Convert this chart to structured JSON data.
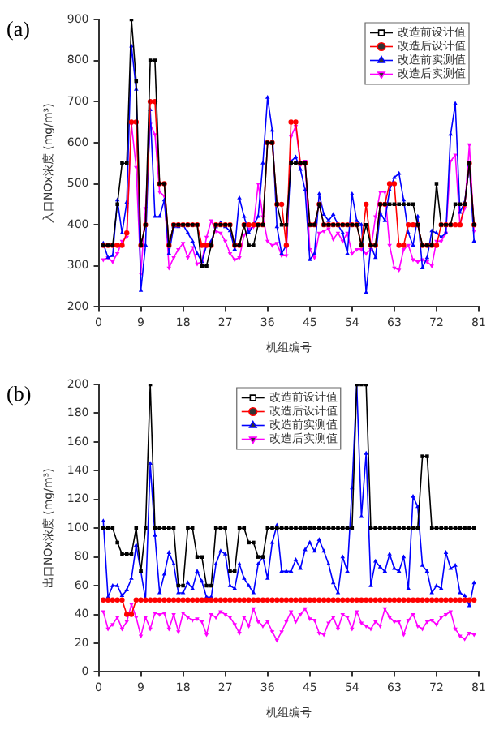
{
  "chart_data": [
    {
      "type": "line",
      "title": "(a)",
      "xlabel": "机组编号",
      "ylabel": "入口NOx浓度 (mg/m³)",
      "xlim": [
        0,
        81
      ],
      "xticks": [
        0,
        9,
        18,
        27,
        36,
        45,
        54,
        63,
        72,
        81
      ],
      "ylim": [
        200,
        900
      ],
      "yticks": [
        200,
        300,
        400,
        500,
        600,
        700,
        800,
        900
      ],
      "legend": "top right",
      "grid": false,
      "x": [
        1,
        2,
        3,
        4,
        5,
        6,
        7,
        8,
        9,
        10,
        11,
        12,
        13,
        14,
        15,
        16,
        17,
        18,
        19,
        20,
        21,
        22,
        23,
        24,
        25,
        26,
        27,
        28,
        29,
        30,
        31,
        32,
        33,
        34,
        35,
        36,
        37,
        38,
        39,
        40,
        41,
        42,
        43,
        44,
        45,
        46,
        47,
        48,
        49,
        50,
        51,
        52,
        53,
        54,
        55,
        56,
        57,
        58,
        59,
        60,
        61,
        62,
        63,
        64,
        65,
        66,
        67,
        68,
        69,
        70,
        71,
        72,
        73,
        74,
        75,
        76,
        77,
        78,
        79,
        80
      ],
      "series": [
        {
          "name": "改造前设计值",
          "color": "#000000",
          "marker": "square",
          "values": [
            350,
            350,
            350,
            450,
            550,
            550,
            900,
            750,
            350,
            400,
            800,
            800,
            500,
            500,
            350,
            400,
            400,
            400,
            400,
            400,
            400,
            300,
            300,
            350,
            400,
            400,
            400,
            400,
            350,
            350,
            400,
            350,
            350,
            400,
            400,
            600,
            600,
            450,
            400,
            400,
            550,
            550,
            550,
            550,
            400,
            400,
            450,
            400,
            400,
            400,
            400,
            400,
            400,
            400,
            400,
            350,
            400,
            350,
            350,
            450,
            450,
            450,
            450,
            450,
            450,
            450,
            450,
            400,
            350,
            350,
            350,
            500,
            400,
            400,
            400,
            450,
            450,
            450,
            550,
            400
          ]
        },
        {
          "name": "改造后设计值",
          "color": "#ff0000",
          "marker": "circle",
          "values": [
            350,
            350,
            350,
            350,
            350,
            380,
            650,
            650,
            350,
            400,
            700,
            700,
            500,
            500,
            350,
            400,
            400,
            400,
            400,
            400,
            400,
            350,
            350,
            350,
            400,
            400,
            400,
            400,
            350,
            350,
            400,
            400,
            400,
            400,
            400,
            600,
            600,
            450,
            450,
            350,
            650,
            650,
            550,
            550,
            400,
            400,
            450,
            400,
            400,
            400,
            400,
            400,
            400,
            400,
            400,
            350,
            450,
            350,
            350,
            450,
            450,
            500,
            500,
            350,
            350,
            400,
            400,
            400,
            350,
            350,
            350,
            350,
            400,
            400,
            400,
            400,
            400,
            450,
            550,
            400
          ]
        },
        {
          "name": "改造前实测值",
          "color": "#0000ff",
          "marker": "triangle",
          "values": [
            355,
            320,
            325,
            460,
            380,
            455,
            835,
            730,
            240,
            350,
            680,
            420,
            420,
            460,
            330,
            395,
            395,
            400,
            380,
            360,
            330,
            310,
            350,
            360,
            395,
            405,
            395,
            385,
            340,
            465,
            420,
            380,
            400,
            420,
            550,
            710,
            630,
            395,
            330,
            350,
            555,
            565,
            535,
            485,
            315,
            330,
            475,
            425,
            410,
            425,
            400,
            380,
            330,
            475,
            410,
            400,
            235,
            350,
            320,
            430,
            410,
            485,
            515,
            525,
            460,
            380,
            350,
            420,
            295,
            320,
            385,
            380,
            370,
            380,
            620,
            695,
            430,
            455,
            545,
            360
          ]
        },
        {
          "name": "改造后实测值",
          "color": "#ff00ff",
          "marker": "triangle-down",
          "values": [
            315,
            320,
            310,
            330,
            360,
            370,
            645,
            540,
            280,
            440,
            645,
            620,
            480,
            470,
            295,
            320,
            340,
            355,
            320,
            345,
            305,
            310,
            370,
            410,
            385,
            380,
            360,
            330,
            315,
            320,
            375,
            390,
            395,
            500,
            420,
            360,
            350,
            355,
            325,
            325,
            615,
            640,
            545,
            555,
            340,
            320,
            380,
            385,
            390,
            365,
            380,
            360,
            380,
            330,
            340,
            340,
            330,
            340,
            420,
            480,
            480,
            350,
            295,
            290,
            340,
            350,
            315,
            310,
            315,
            310,
            300,
            360,
            360,
            380,
            555,
            570,
            400,
            440,
            595,
            385
          ]
        }
      ]
    },
    {
      "type": "line",
      "title": "(b)",
      "xlabel": "机组编号",
      "ylabel": "出口NOx浓度 (mg/m³)",
      "xlim": [
        0,
        81
      ],
      "xticks": [
        0,
        9,
        18,
        27,
        36,
        45,
        54,
        63,
        72,
        81
      ],
      "ylim": [
        0,
        200
      ],
      "yticks": [
        0,
        20,
        40,
        60,
        80,
        100,
        120,
        140,
        160,
        180,
        200
      ],
      "legend": "top",
      "grid": false,
      "x": [
        1,
        2,
        3,
        4,
        5,
        6,
        7,
        8,
        9,
        10,
        11,
        12,
        13,
        14,
        15,
        16,
        17,
        18,
        19,
        20,
        21,
        22,
        23,
        24,
        25,
        26,
        27,
        28,
        29,
        30,
        31,
        32,
        33,
        34,
        35,
        36,
        37,
        38,
        39,
        40,
        41,
        42,
        43,
        44,
        45,
        46,
        47,
        48,
        49,
        50,
        51,
        52,
        53,
        54,
        55,
        56,
        57,
        58,
        59,
        60,
        61,
        62,
        63,
        64,
        65,
        66,
        67,
        68,
        69,
        70,
        71,
        72,
        73,
        74,
        75,
        76,
        77,
        78,
        79,
        80
      ],
      "series": [
        {
          "name": "改造前设计值",
          "color": "#000000",
          "marker": "square",
          "values": [
            100,
            100,
            100,
            90,
            82,
            82,
            82,
            100,
            70,
            100,
            200,
            100,
            100,
            100,
            100,
            100,
            60,
            60,
            100,
            100,
            80,
            80,
            60,
            60,
            100,
            100,
            100,
            70,
            70,
            100,
            100,
            90,
            90,
            80,
            80,
            100,
            100,
            100,
            100,
            100,
            100,
            100,
            100,
            100,
            100,
            100,
            100,
            100,
            100,
            100,
            100,
            100,
            100,
            100,
            200,
            200,
            200,
            100,
            100,
            100,
            100,
            100,
            100,
            100,
            100,
            100,
            100,
            100,
            150,
            150,
            100,
            100,
            100,
            100,
            100,
            100,
            100,
            100,
            100,
            100
          ]
        },
        {
          "name": "改造后设计值",
          "color": "#ff0000",
          "marker": "circle",
          "values": [
            50,
            50,
            50,
            50,
            50,
            40,
            40,
            50,
            50,
            50,
            50,
            50,
            50,
            50,
            50,
            50,
            50,
            50,
            50,
            50,
            50,
            50,
            50,
            50,
            50,
            50,
            50,
            50,
            50,
            50,
            50,
            50,
            50,
            50,
            50,
            50,
            50,
            50,
            50,
            50,
            50,
            50,
            50,
            50,
            50,
            50,
            50,
            50,
            50,
            50,
            50,
            50,
            50,
            50,
            50,
            50,
            50,
            50,
            50,
            50,
            50,
            50,
            50,
            50,
            50,
            50,
            50,
            50,
            50,
            50,
            50,
            50,
            50,
            50,
            50,
            50,
            50,
            50,
            50,
            50
          ]
        },
        {
          "name": "改造前实测值",
          "color": "#0000ff",
          "marker": "triangle",
          "values": [
            105,
            52,
            60,
            60,
            53,
            57,
            65,
            88,
            70,
            50,
            145,
            95,
            55,
            68,
            83,
            75,
            55,
            55,
            62,
            58,
            70,
            63,
            52,
            52,
            75,
            84,
            82,
            60,
            58,
            75,
            65,
            60,
            55,
            75,
            80,
            65,
            90,
            102,
            70,
            70,
            70,
            78,
            72,
            85,
            90,
            84,
            92,
            84,
            75,
            62,
            55,
            80,
            70,
            128,
            200,
            108,
            152,
            60,
            77,
            73,
            70,
            82,
            72,
            70,
            80,
            58,
            122,
            115,
            74,
            70,
            55,
            60,
            58,
            83,
            72,
            74,
            55,
            53,
            46,
            62
          ]
        },
        {
          "name": "改造后实测值",
          "color": "#ff00ff",
          "marker": "triangle-down",
          "values": [
            42,
            30,
            33,
            38,
            30,
            35,
            47,
            38,
            25,
            38,
            30,
            41,
            40,
            41,
            30,
            40,
            28,
            41,
            38,
            36,
            37,
            35,
            26,
            40,
            38,
            42,
            40,
            38,
            33,
            27,
            38,
            32,
            44,
            35,
            32,
            35,
            28,
            22,
            28,
            35,
            42,
            35,
            40,
            44,
            37,
            36,
            27,
            26,
            34,
            38,
            30,
            40,
            38,
            30,
            42,
            34,
            32,
            30,
            35,
            32,
            44,
            38,
            35,
            35,
            26,
            36,
            40,
            32,
            30,
            35,
            36,
            33,
            38,
            40,
            42,
            30,
            25,
            23,
            27,
            26
          ]
        }
      ]
    }
  ]
}
